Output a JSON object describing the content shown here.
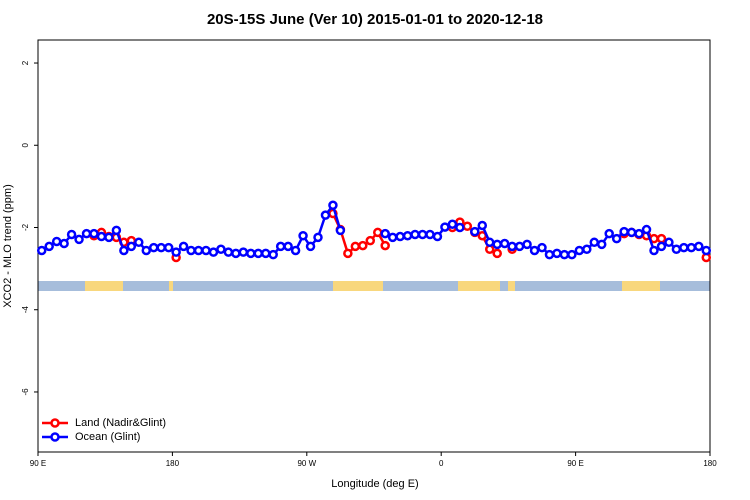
{
  "chart_data": {
    "type": "line",
    "title": "20S-15S June (Ver 10)   2015-01-01 to 2020-12-18",
    "x_label": "Longitude (deg E)",
    "y_label": "XCO2 - MLO trend (ppm)",
    "xlim": [
      90,
      540
    ],
    "ylim": [
      -7.46,
      2.56
    ],
    "xticks": [
      {
        "value": 90,
        "label": "90 E"
      },
      180,
      {
        "value": 270,
        "label": "90 W"
      },
      {
        "value": 360,
        "label": "0"
      },
      {
        "value": 450,
        "label": "90 E"
      },
      {
        "value": 540,
        "label": "180"
      }
    ],
    "yticks": [
      2,
      0,
      -2,
      -4,
      -6
    ],
    "legend": "bottom-left",
    "x": [
      92.5,
      97.5,
      102.5,
      107.5,
      112.5,
      117.5,
      122.5,
      127.5,
      132.5,
      137.5,
      142.5,
      147.5,
      152.5,
      157.5,
      162.5,
      167.5,
      172.5,
      177.5,
      182.5,
      187.5,
      192.5,
      197.5,
      202.5,
      207.5,
      212.5,
      217.5,
      222.5,
      227.5,
      232.5,
      237.5,
      242.5,
      247.5,
      252.5,
      257.5,
      262.5,
      267.5,
      272.5,
      277.5,
      282.5,
      287.5,
      292.5,
      297.5,
      302.5,
      307.5,
      312.5,
      317.5,
      322.5,
      327.5,
      332.5,
      337.5,
      342.5,
      347.5,
      352.5,
      357.5,
      362.5,
      367.5,
      372.5,
      377.5,
      382.5,
      387.5,
      392.5,
      397.5,
      402.5,
      407.5,
      412.5,
      417.5,
      422.5,
      427.5,
      432.5,
      437.5,
      442.5,
      447.5,
      452.5,
      457.5,
      462.5,
      467.5,
      472.5,
      477.5,
      482.5,
      487.5,
      492.5,
      497.5,
      502.5,
      507.5,
      512.5,
      517.5,
      522.5,
      527.5,
      532.5,
      537.5
    ],
    "series": [
      {
        "name": "Land (Nadir&Glint)",
        "color": "#ff0000",
        "values": [
          null,
          null,
          null,
          null,
          null,
          null,
          null,
          -2.2,
          -2.12,
          -2.22,
          -2.24,
          -2.36,
          -2.32,
          null,
          null,
          null,
          null,
          null,
          -2.73,
          null,
          null,
          null,
          null,
          null,
          null,
          null,
          null,
          null,
          null,
          null,
          null,
          null,
          null,
          null,
          null,
          null,
          null,
          null,
          null,
          -1.66,
          -2.05,
          -2.63,
          -2.46,
          -2.44,
          -2.32,
          -2.12,
          -2.44,
          null,
          null,
          null,
          null,
          null,
          null,
          null,
          null,
          -2.0,
          -1.87,
          -1.97,
          -2.12,
          -2.2,
          -2.53,
          -2.63,
          null,
          -2.53,
          null,
          null,
          null,
          null,
          null,
          null,
          null,
          null,
          null,
          null,
          null,
          null,
          null,
          null,
          -2.15,
          -2.12,
          -2.17,
          -2.2,
          -2.27,
          -2.27,
          null,
          null,
          null,
          null,
          null,
          -2.73
        ]
      },
      {
        "name": "Ocean (Glint)",
        "color": "#0000ff",
        "values": [
          -2.56,
          -2.46,
          -2.34,
          -2.39,
          -2.17,
          -2.29,
          -2.15,
          -2.15,
          -2.22,
          -2.24,
          -2.07,
          -2.56,
          -2.46,
          -2.36,
          -2.56,
          -2.49,
          -2.49,
          -2.49,
          -2.6,
          -2.46,
          -2.56,
          -2.56,
          -2.56,
          -2.6,
          -2.53,
          -2.6,
          -2.63,
          -2.6,
          -2.63,
          -2.63,
          -2.63,
          -2.66,
          -2.46,
          -2.46,
          -2.56,
          -2.2,
          -2.46,
          -2.24,
          -1.7,
          -1.46,
          -2.07,
          null,
          null,
          null,
          null,
          null,
          -2.15,
          -2.24,
          -2.22,
          -2.2,
          -2.17,
          -2.17,
          -2.17,
          -2.22,
          -1.99,
          -1.92,
          -2.0,
          null,
          -2.1,
          -1.95,
          -2.36,
          -2.41,
          -2.39,
          -2.46,
          -2.46,
          -2.41,
          -2.56,
          -2.49,
          -2.66,
          -2.63,
          -2.66,
          -2.66,
          -2.56,
          -2.53,
          -2.36,
          -2.41,
          -2.15,
          -2.27,
          -2.1,
          -2.12,
          -2.15,
          -2.05,
          -2.56,
          -2.46,
          -2.36,
          -2.53,
          -2.49,
          -2.49,
          -2.46,
          -2.56
        ]
      }
    ]
  }
}
